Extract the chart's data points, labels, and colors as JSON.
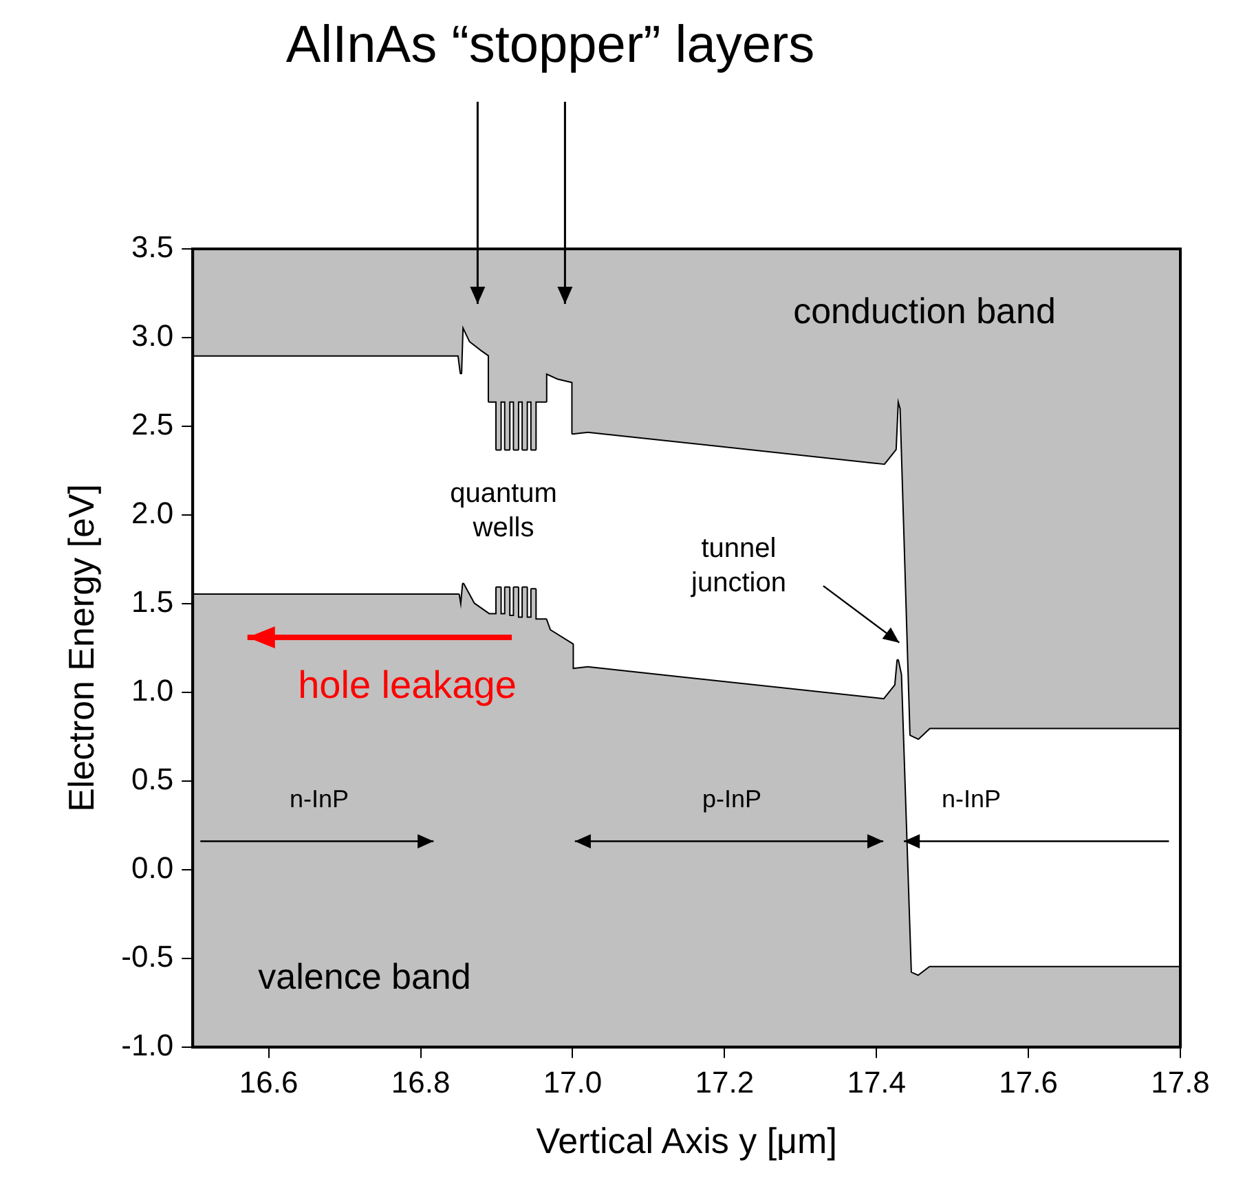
{
  "chart_data": {
    "type": "line",
    "title": "AlInAs “stopper” layers",
    "xlabel": "Vertical Axis y [μm]",
    "ylabel": "Electron Energy [eV]",
    "xlim": [
      16.5,
      17.8
    ],
    "xticks": [
      16.6,
      16.8,
      {
        "value": 17,
        "label": "17.0"
      },
      17.2,
      17.4,
      17.6,
      17.8
    ],
    "ylim": [
      -1,
      3.5
    ],
    "yticks": [
      {
        "value": -1,
        "label": "-1.0"
      },
      -0.5,
      {
        "value": 0,
        "label": "0.0"
      },
      0.5,
      {
        "value": 1,
        "label": "1.0"
      },
      1.5,
      {
        "value": 2,
        "label": "2.0"
      },
      2.5,
      {
        "value": 3,
        "label": "3.0"
      },
      3.5
    ],
    "grid": false,
    "legend": false,
    "series": [
      {
        "color": "#000000",
        "x": [
          16.5,
          16.85,
          16.853,
          16.855,
          16.865,
          16.88,
          16.89,
          16.89,
          16.9,
          16.9,
          16.905,
          16.905,
          16.9115,
          16.9115,
          16.9165,
          16.9165,
          16.923,
          16.923,
          16.928,
          16.928,
          16.9345,
          16.9345,
          16.9395,
          16.9395,
          16.946,
          16.946,
          16.951,
          16.951,
          16.965,
          16.965,
          16.98,
          17.0,
          17.0,
          17.02,
          17.41,
          17.425,
          17.428,
          17.432,
          17.445,
          17.455,
          17.47,
          17.8
        ],
        "values": [
          2.9,
          2.9,
          2.8,
          3.07,
          2.98,
          2.93,
          2.9,
          2.64,
          2.64,
          2.37,
          2.37,
          2.64,
          2.64,
          2.37,
          2.37,
          2.64,
          2.64,
          2.37,
          2.37,
          2.64,
          2.64,
          2.37,
          2.37,
          2.64,
          2.64,
          2.37,
          2.37,
          2.64,
          2.64,
          2.8,
          2.77,
          2.75,
          2.46,
          2.47,
          2.29,
          2.37,
          2.66,
          2.6,
          0.76,
          0.74,
          0.8,
          0.8
        ],
        "lower": [
          2.9,
          2.9,
          2.8,
          3.07,
          2.98,
          2.93,
          2.9,
          2.64,
          2.64,
          2.37,
          2.37,
          2.64,
          2.64,
          2.37,
          2.37,
          2.64,
          2.64,
          2.37,
          2.37,
          2.64,
          2.64,
          2.37,
          2.37,
          2.64,
          2.64,
          2.37,
          2.37,
          2.64,
          2.64,
          2.8,
          2.77,
          2.75,
          2.46,
          2.47,
          2.29,
          2.37,
          2.66,
          2.6,
          0.76,
          0.74,
          0.8,
          0.8
        ],
        "upper": [
          3.5,
          3.5,
          3.5,
          3.5,
          3.5,
          3.5,
          3.5,
          3.5,
          3.5,
          3.5,
          3.5,
          3.5,
          3.5,
          3.5,
          3.5,
          3.5,
          3.5,
          3.5,
          3.5,
          3.5,
          3.5,
          3.5,
          3.5,
          3.5,
          3.5,
          3.5,
          3.5,
          3.5,
          3.5,
          3.5,
          3.5,
          3.5,
          3.5,
          3.5,
          3.5,
          3.5,
          3.5,
          3.5,
          3.5,
          3.5,
          3.5,
          3.5
        ]
      },
      {
        "color": "#000000",
        "x": [
          16.5,
          16.85,
          16.853,
          16.856,
          16.87,
          16.89,
          16.9,
          16.9,
          16.905,
          16.905,
          16.9115,
          16.9115,
          16.9165,
          16.9165,
          16.923,
          16.923,
          16.928,
          16.928,
          16.9345,
          16.9345,
          16.9395,
          16.9395,
          16.946,
          16.946,
          16.951,
          16.951,
          16.965,
          16.97,
          17.0,
          17.0,
          17.02,
          17.41,
          17.425,
          17.428,
          17.432,
          17.445,
          17.455,
          17.47,
          17.8
        ],
        "values": [
          1.55,
          1.55,
          1.47,
          1.61,
          1.5,
          1.44,
          1.44,
          1.59,
          1.59,
          1.44,
          1.44,
          1.59,
          1.59,
          1.43,
          1.43,
          1.59,
          1.59,
          1.42,
          1.42,
          1.59,
          1.59,
          1.42,
          1.42,
          1.58,
          1.58,
          1.41,
          1.41,
          1.35,
          1.27,
          1.13,
          1.14,
          0.96,
          1.04,
          1.18,
          1.1,
          -0.58,
          -0.6,
          -0.55,
          -0.55
        ],
        "lower": [
          -1,
          -1,
          -1,
          -1,
          -1,
          -1,
          -1,
          -1,
          -1,
          -1,
          -1,
          -1,
          -1,
          -1,
          -1,
          -1,
          -1,
          -1,
          -1,
          -1,
          -1,
          -1,
          -1,
          -1,
          -1,
          -1,
          -1,
          -1,
          -1,
          -1,
          -1,
          -1,
          -1,
          -1,
          -1,
          -1,
          -1,
          -1,
          -1
        ],
        "upper": [
          1.55,
          1.55,
          1.47,
          1.61,
          1.5,
          1.44,
          1.44,
          1.59,
          1.59,
          1.44,
          1.44,
          1.59,
          1.59,
          1.43,
          1.43,
          1.59,
          1.59,
          1.42,
          1.42,
          1.59,
          1.59,
          1.42,
          1.42,
          1.58,
          1.58,
          1.41,
          1.41,
          1.35,
          1.27,
          1.13,
          1.14,
          0.96,
          1.04,
          1.18,
          1.1,
          -0.58,
          -0.6,
          -0.55,
          -0.55
        ]
      }
    ],
    "annotations": [
      "conduction band",
      "quantum\nwells",
      "tunnel\njunction",
      "hole leakage",
      "n-InP",
      "p-InP",
      "n-InP",
      "valence band"
    ]
  }
}
